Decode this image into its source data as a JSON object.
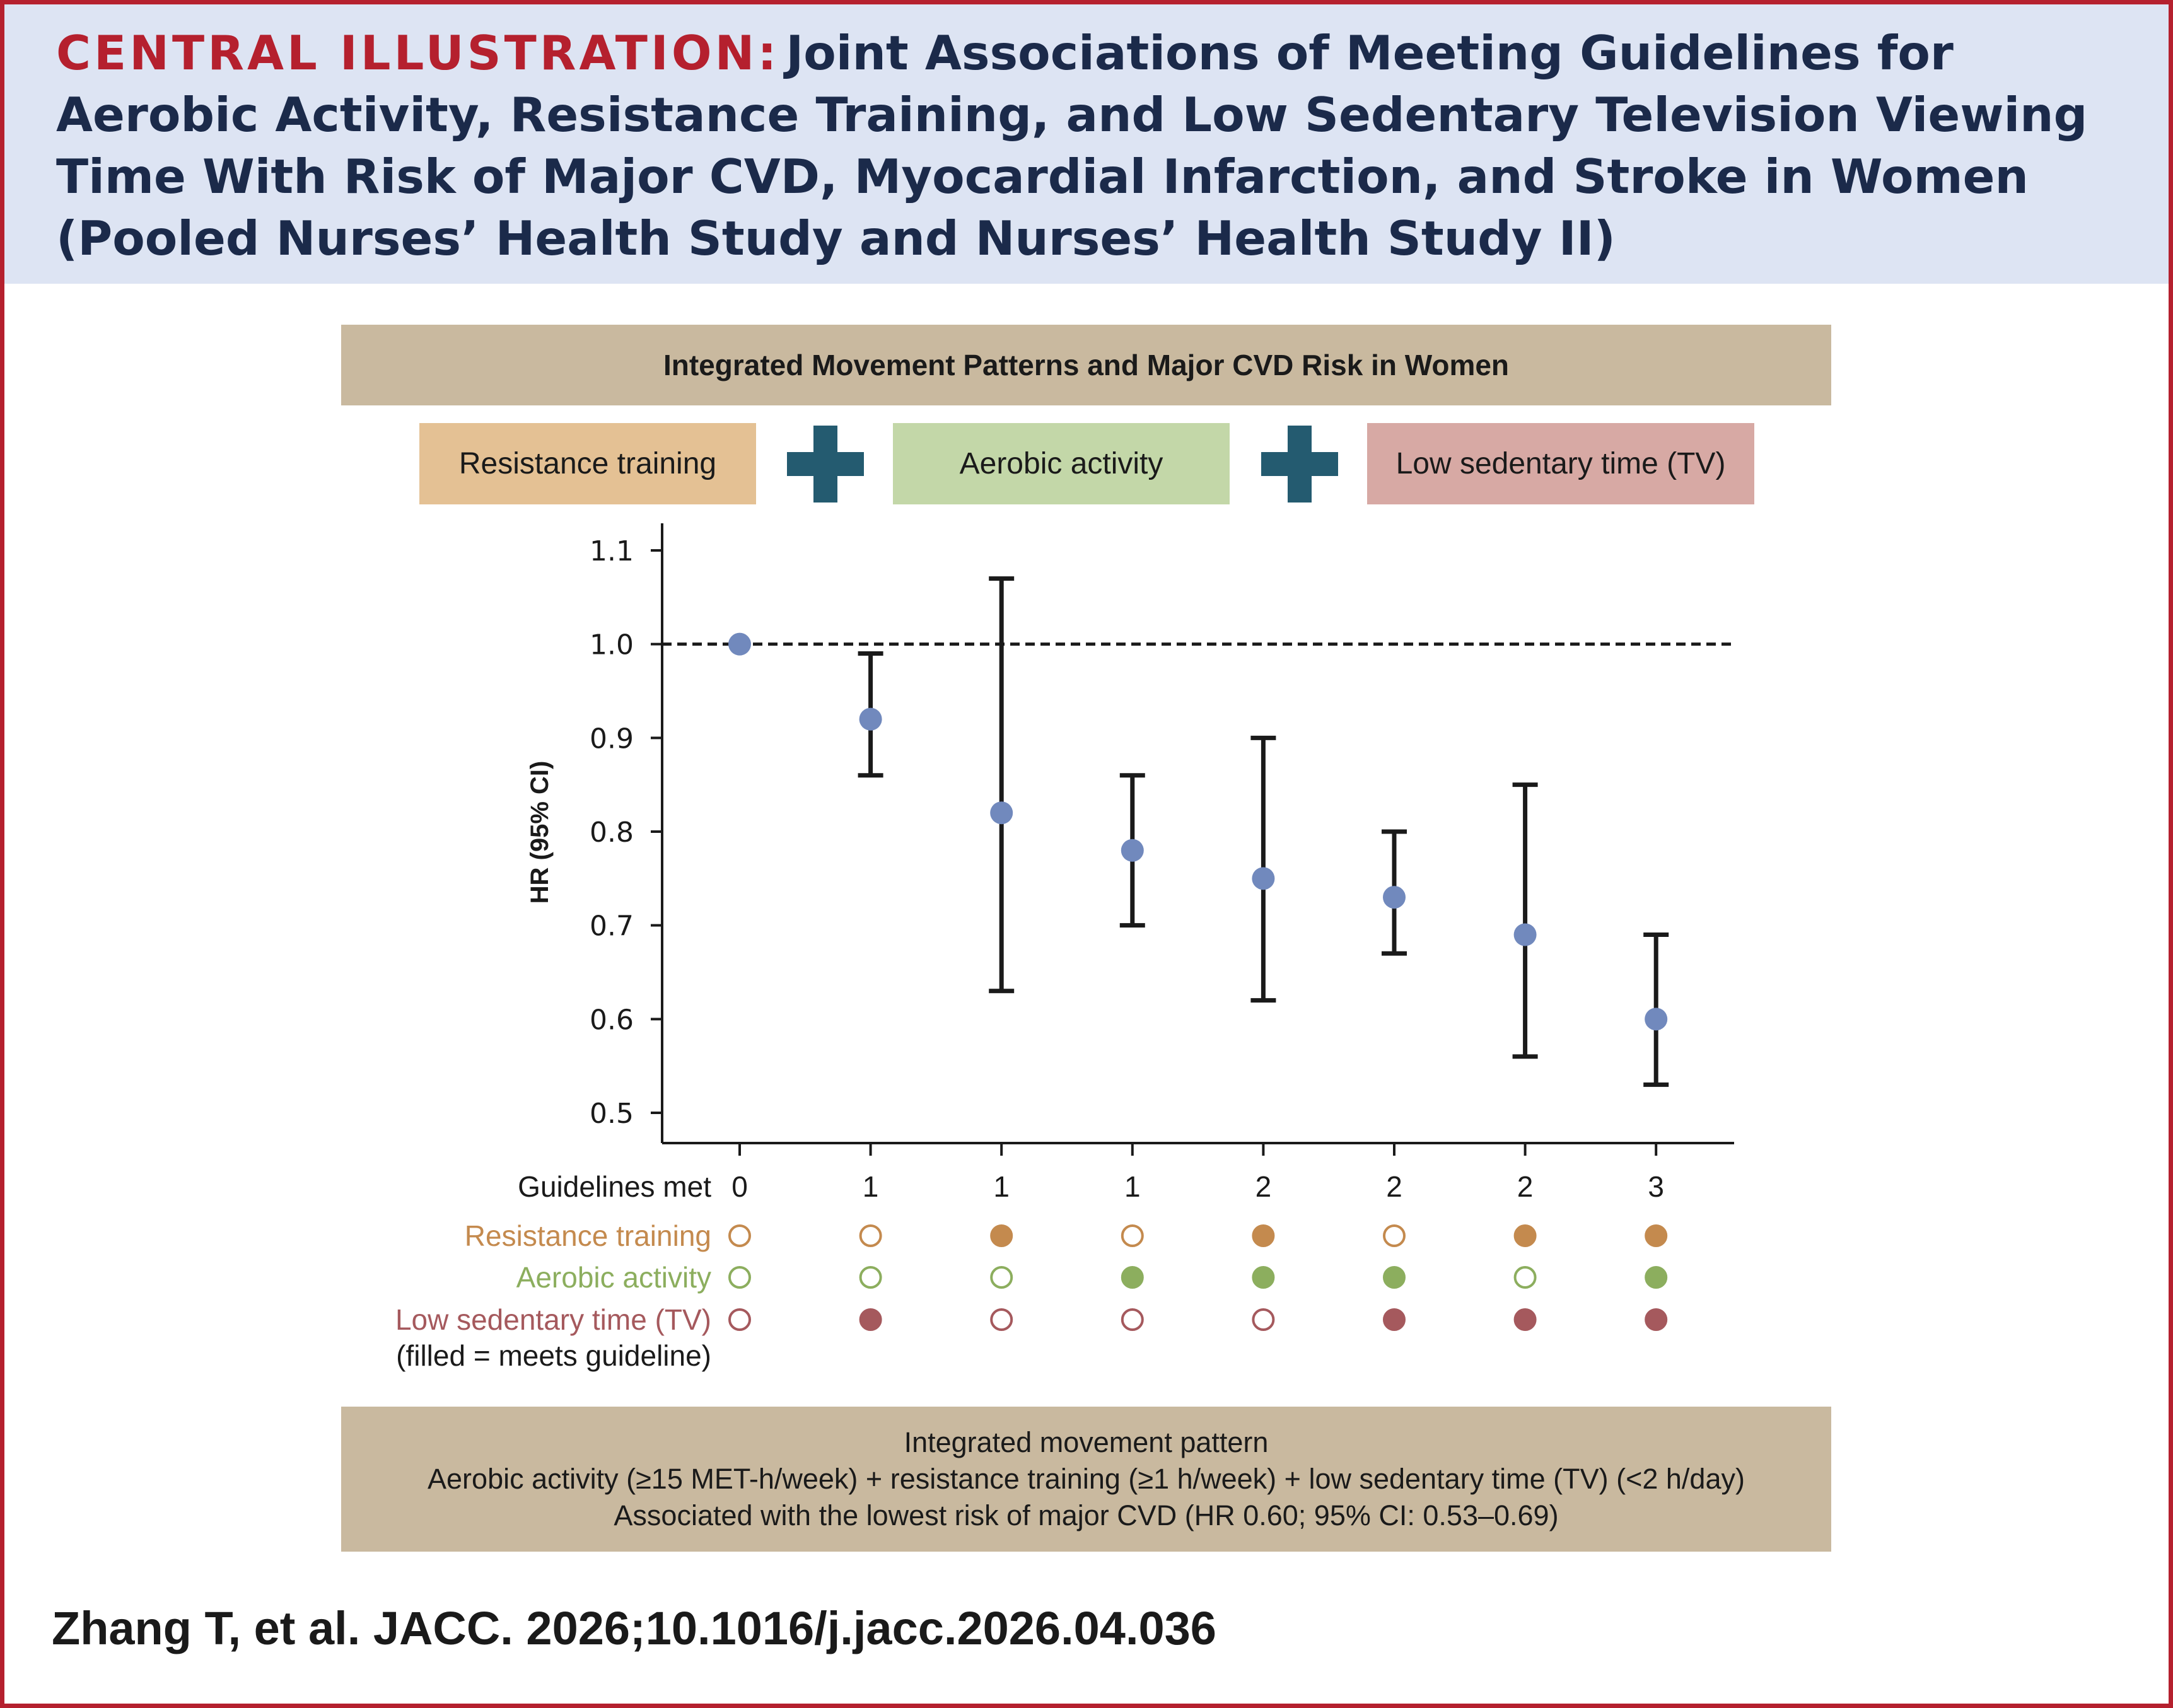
{
  "header": {
    "title_lead": "CENTRAL ILLUSTRATION:",
    "title_rest": "Joint Associations of Meeting Guidelines for Aerobic Activity, Resistance Training, and Low Sedentary Television Viewing Time With Risk of Major CVD, Myocardial Infarction, and Stroke in Women (Pooled Nurses’ Health Study and Nurses’ Health Study II)"
  },
  "colors": {
    "accent_red": "#b5202e",
    "navy": "#1b2a4a",
    "header_bg": "#dde4f3",
    "banner_bg": "#c9b99f",
    "plus_teal": "#245b70",
    "point_blue": "#7189bd",
    "resistance": "#c48a4e",
    "aerobic": "#8cae5e",
    "sedentary": "#a5595d"
  },
  "banner": {
    "label": "Integrated Movement Patterns and Major CVD Risk in Women"
  },
  "components": [
    {
      "label": "Resistance training",
      "icon": "plus-icon"
    },
    {
      "label": "Aerobic activity",
      "icon": "plus-icon"
    },
    {
      "label": "Low sedentary time (TV)"
    }
  ],
  "chart_data": {
    "type": "scatter",
    "subtype": "forest-plot-with-error-bars",
    "ylabel": "HR (95% CI)",
    "ylim": [
      0.5,
      1.1
    ],
    "yticks": [
      "0.5",
      "0.6",
      "0.7",
      "0.8",
      "0.9",
      "1.0",
      "1.1"
    ],
    "reference_line": {
      "y": 1.0,
      "style": "dashed"
    },
    "points": [
      {
        "guidelines_met": "0",
        "hr": 1.0,
        "ci_low": null,
        "ci_high": null,
        "resistance": false,
        "aerobic": false,
        "sedentary": false
      },
      {
        "guidelines_met": "1",
        "hr": 0.92,
        "ci_low": 0.86,
        "ci_high": 0.99,
        "resistance": false,
        "aerobic": false,
        "sedentary": true
      },
      {
        "guidelines_met": "1",
        "hr": 0.82,
        "ci_low": 0.63,
        "ci_high": 1.07,
        "resistance": true,
        "aerobic": false,
        "sedentary": false
      },
      {
        "guidelines_met": "1",
        "hr": 0.78,
        "ci_low": 0.7,
        "ci_high": 0.86,
        "resistance": false,
        "aerobic": true,
        "sedentary": false
      },
      {
        "guidelines_met": "2",
        "hr": 0.75,
        "ci_low": 0.62,
        "ci_high": 0.9,
        "resistance": true,
        "aerobic": true,
        "sedentary": false
      },
      {
        "guidelines_met": "2",
        "hr": 0.73,
        "ci_low": 0.67,
        "ci_high": 0.8,
        "resistance": false,
        "aerobic": true,
        "sedentary": true
      },
      {
        "guidelines_met": "2",
        "hr": 0.69,
        "ci_low": 0.56,
        "ci_high": 0.85,
        "resistance": true,
        "aerobic": false,
        "sedentary": true
      },
      {
        "guidelines_met": "3",
        "hr": 0.6,
        "ci_low": 0.53,
        "ci_high": 0.69,
        "resistance": true,
        "aerobic": true,
        "sedentary": true
      }
    ],
    "row_labels": {
      "guidelines_met": "Guidelines met",
      "resistance": "Resistance training",
      "aerobic": "Aerobic activity",
      "sedentary": "Low sedentary time (TV)",
      "legend_note": "(filled = meets guideline)"
    }
  },
  "summary": {
    "line1": "Integrated movement pattern",
    "line2": "Aerobic activity (≥15 MET-h/week) + resistance training (≥1 h/week) + low sedentary time (TV) (<2 h/day)",
    "line3": "Associated with the lowest risk of major CVD (HR 0.60; 95% CI: 0.53–0.69)"
  },
  "citation": "Zhang T, et al. JACC. 2026;10.1016/j.jacc.2026.04.036"
}
